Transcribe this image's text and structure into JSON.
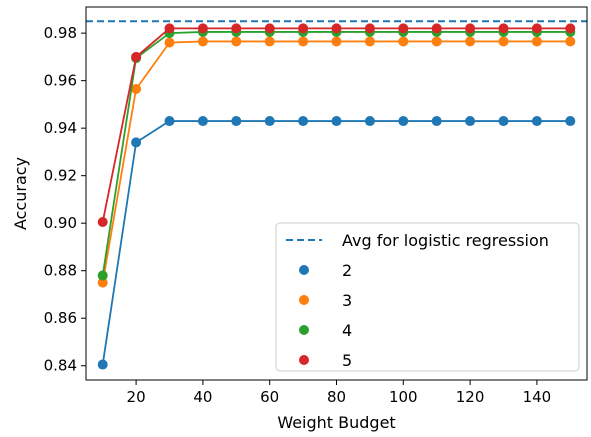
{
  "chart_data": {
    "type": "line",
    "title": "",
    "xlabel": "Weight Budget",
    "ylabel": "Accuracy",
    "xlim": [
      5,
      155
    ],
    "ylim": [
      0.834,
      0.991
    ],
    "xticks": [
      20,
      40,
      60,
      80,
      100,
      120,
      140
    ],
    "yticks": [
      0.84,
      0.86,
      0.88,
      0.9,
      0.92,
      0.94,
      0.96,
      0.98
    ],
    "ytick_labels": [
      "0.84",
      "0.86",
      "0.88",
      "0.90",
      "0.92",
      "0.94",
      "0.96",
      "0.98"
    ],
    "grid": false,
    "legend_position": "lower-right",
    "x": [
      10,
      20,
      30,
      40,
      50,
      60,
      70,
      80,
      90,
      100,
      110,
      120,
      130,
      140,
      150
    ],
    "reference_line": {
      "name": "Avg for logistic regression",
      "value": 0.985,
      "color": "#1f77b4",
      "style": "dashed"
    },
    "series": [
      {
        "name": "2",
        "color": "#1f77b4",
        "values": [
          0.8405,
          0.934,
          0.943,
          0.943,
          0.943,
          0.943,
          0.943,
          0.943,
          0.943,
          0.943,
          0.943,
          0.943,
          0.943,
          0.943,
          0.943
        ]
      },
      {
        "name": "3",
        "color": "#ff7f0e",
        "values": [
          0.875,
          0.9565,
          0.976,
          0.9765,
          0.9765,
          0.9765,
          0.9765,
          0.9765,
          0.9765,
          0.9765,
          0.9765,
          0.9765,
          0.9765,
          0.9765,
          0.9765
        ]
      },
      {
        "name": "4",
        "color": "#2ca02c",
        "values": [
          0.878,
          0.9695,
          0.98,
          0.9805,
          0.9805,
          0.9805,
          0.9805,
          0.9805,
          0.9805,
          0.9805,
          0.9805,
          0.9805,
          0.9805,
          0.9805,
          0.9805
        ]
      },
      {
        "name": "5",
        "color": "#d62728",
        "values": [
          0.9005,
          0.97,
          0.982,
          0.982,
          0.982,
          0.982,
          0.982,
          0.982,
          0.982,
          0.982,
          0.982,
          0.982,
          0.982,
          0.982,
          0.982
        ]
      }
    ]
  }
}
